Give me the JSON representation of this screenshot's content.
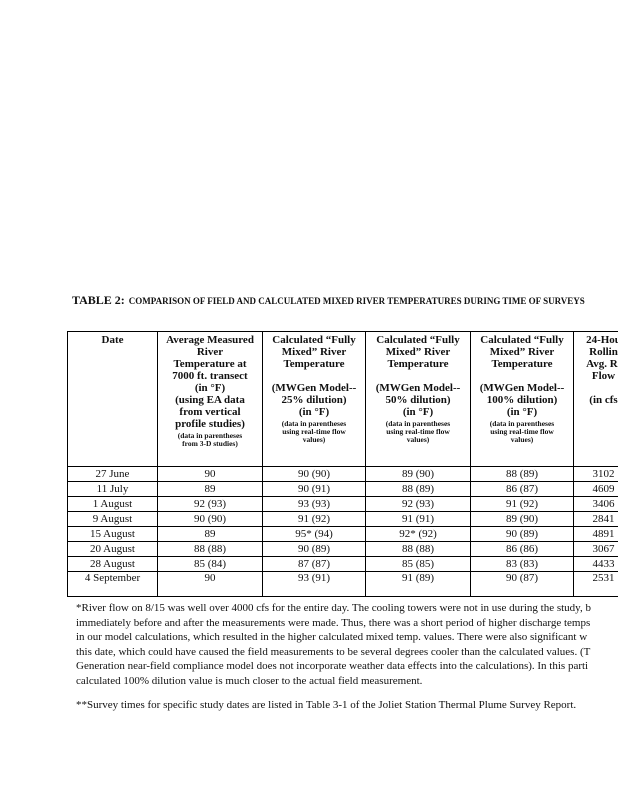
{
  "title": {
    "label": "TABLE 2:",
    "text": "COMPARISON OF FIELD AND CALCULATED MIXED RIVER TEMPERATURES DURING TIME OF SURVEYS"
  },
  "table": {
    "headers": [
      {
        "lines": [
          "Date"
        ]
      },
      {
        "lines": [
          "Average Measured",
          "River",
          "Temperature at",
          "7000 ft. transect",
          "(in °F)",
          "(using EA data",
          "from vertical",
          "profile studies)"
        ],
        "note": [
          "(data in parentheses",
          "from 3-D studies)"
        ]
      },
      {
        "lines": [
          "Calculated “Fully",
          "Mixed” River",
          "Temperature"
        ],
        "sub": [
          "(MWGen Model--",
          "25% dilution)",
          "(in °F)"
        ],
        "note": [
          "(data in parentheses",
          "using real-time flow",
          "values)"
        ]
      },
      {
        "lines": [
          "Calculated “Fully",
          "Mixed” River",
          "Temperature"
        ],
        "sub": [
          "(MWGen Model--",
          "50% dilution)",
          "(in °F)"
        ],
        "note": [
          "(data in parentheses",
          "using real-time flow",
          "values)"
        ]
      },
      {
        "lines": [
          "Calculated “Fully",
          "Mixed” River",
          "Temperature"
        ],
        "sub": [
          "(MWGen Model--",
          "100% dilution)",
          "(in °F)"
        ],
        "note": [
          "(data in parentheses",
          "using real-time flow",
          "values)"
        ]
      },
      {
        "lines": [
          "24-Hou",
          "Rollin",
          "Avg. Ri",
          "Flow"
        ],
        "sub": [
          "(in cfs"
        ]
      }
    ],
    "rows": [
      [
        "27 June",
        "90",
        "90 (90)",
        "89 (90)",
        "88 (89)",
        "3102"
      ],
      [
        "11 July",
        "89",
        "90 (91)",
        "88 (89)",
        "86 (87)",
        "4609"
      ],
      [
        "1 August",
        "92 (93)",
        "93 (93)",
        "92 (93)",
        "91 (92)",
        "3406"
      ],
      [
        "9 August",
        "90 (90)",
        "91 (92)",
        "91 (91)",
        "89 (90)",
        "2841"
      ],
      [
        "15 August",
        "89",
        "95* (94)",
        "92* (92)",
        "90 (89)",
        "4891"
      ],
      [
        "20 August",
        "88 (88)",
        "90 (89)",
        "88 (88)",
        "86 (86)",
        "3067"
      ],
      [
        "28 August",
        "85 (84)",
        "87 (87)",
        "85 (85)",
        "83 (83)",
        "4433"
      ],
      [
        "4 September",
        "90",
        "93 (91)",
        "91 (89)",
        "90 (87)",
        "2531"
      ]
    ]
  },
  "footnotes": [
    [
      "*River flow on 8/15 was well over 4000 cfs for the entire day.  The cooling towers were not in use during the study, b",
      "immediately before and after the measurements were made.  Thus, there was a short period of higher discharge temps",
      "in our model calculations, which resulted in the higher calculated mixed temp. values.  There were also significant w",
      "this date, which could have caused the field measurements to be several degrees cooler than the calculated values.  (T",
      "Generation near-field compliance model does not incorporate weather data effects into the calculations).  In this parti",
      "calculated 100% dilution value is much closer to the actual field measurement."
    ],
    [
      "**Survey times for specific study dates are listed in Table 3-1 of the Joliet Station Thermal Plume Survey Report."
    ]
  ]
}
